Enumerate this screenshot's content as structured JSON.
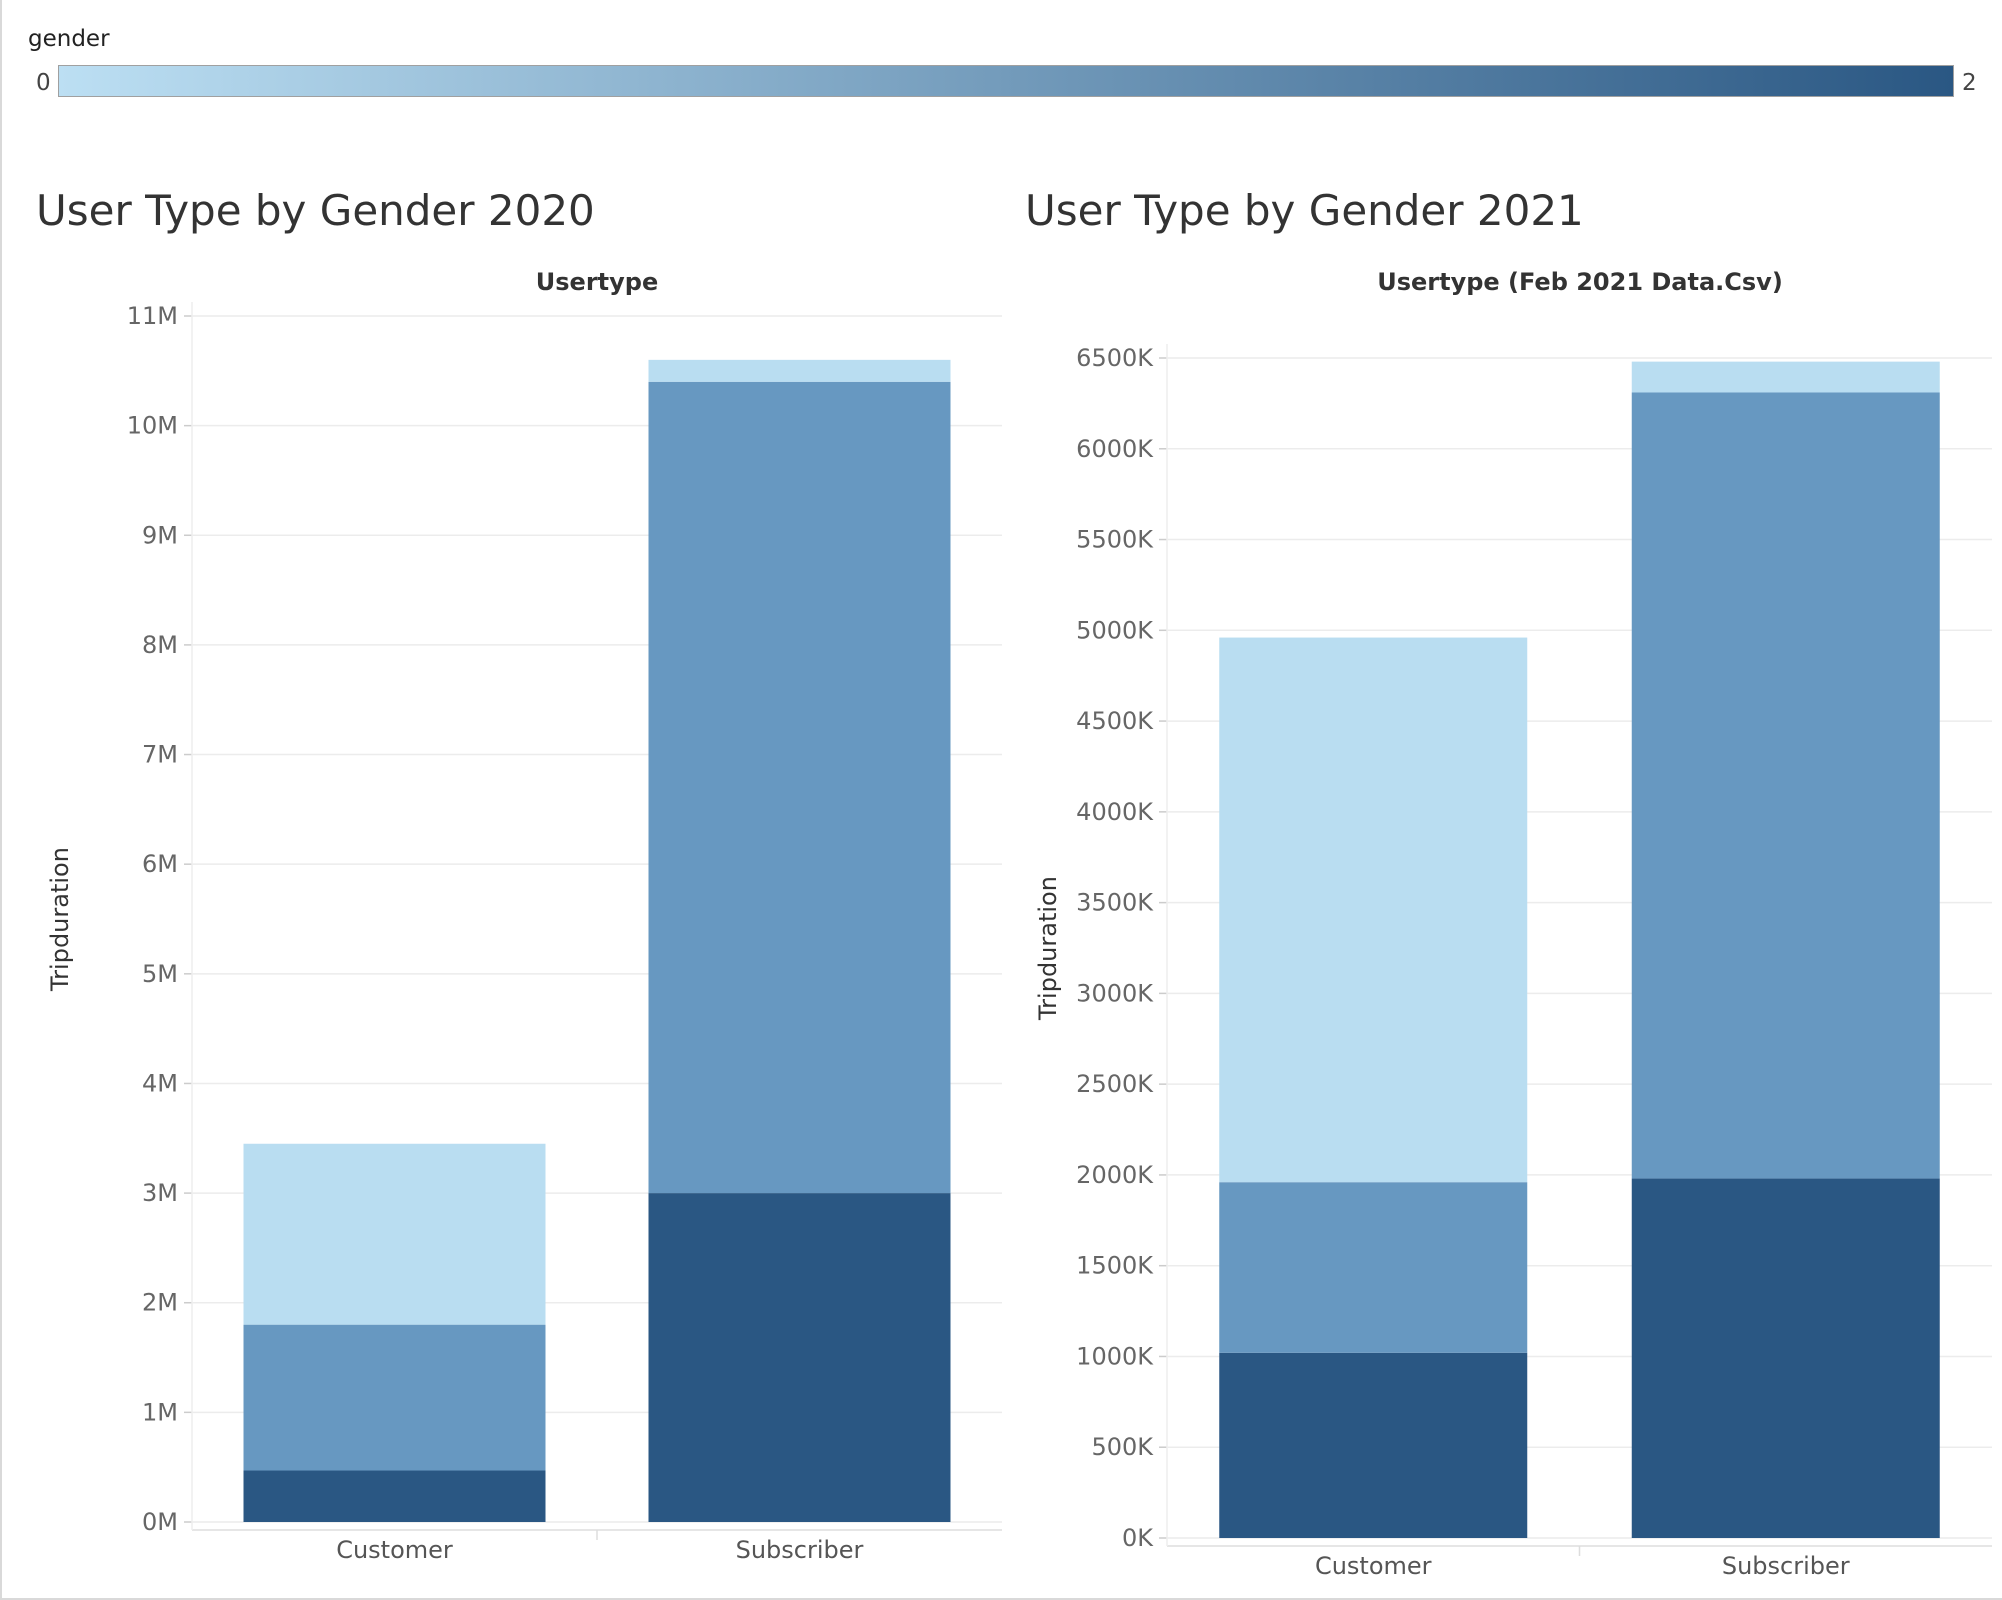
{
  "legend": {
    "title": "gender",
    "min_label": "0",
    "max_label": "2",
    "color_low": "#bcdff3",
    "color_high": "#2a5783"
  },
  "colors": {
    "gender_0": "#b9ddf1",
    "gender_1": "#6798c1",
    "gender_2": "#2a5783",
    "gridline": "#ececec"
  },
  "chart_data": [
    {
      "type": "bar",
      "stacked": true,
      "title": "User Type by Gender 2020",
      "header": "Usertype",
      "xlabel": "",
      "ylabel": "Tripduration",
      "categories": [
        "Customer",
        "Subscriber"
      ],
      "series": [
        {
          "name": "2",
          "values": [
            470000,
            3000000
          ]
        },
        {
          "name": "1",
          "values": [
            1330000,
            7400000
          ]
        },
        {
          "name": "0",
          "values": [
            1650000,
            200000
          ]
        }
      ],
      "ylim": [
        0,
        11000000
      ],
      "yticks": [
        0,
        1000000,
        2000000,
        3000000,
        4000000,
        5000000,
        6000000,
        7000000,
        8000000,
        9000000,
        10000000,
        11000000
      ],
      "ytick_labels": [
        "0M",
        "1M",
        "2M",
        "3M",
        "4M",
        "5M",
        "6M",
        "7M",
        "8M",
        "9M",
        "10M",
        "11M"
      ],
      "grid": true
    },
    {
      "type": "bar",
      "stacked": true,
      "title": "User Type by Gender 2021",
      "header": "Usertype (Feb 2021 Data.Csv)",
      "xlabel": "",
      "ylabel": "Tripduration",
      "categories": [
        "Customer",
        "Subscriber"
      ],
      "series": [
        {
          "name": "2",
          "values": [
            1020000,
            1980000
          ]
        },
        {
          "name": "1",
          "values": [
            940000,
            4330000
          ]
        },
        {
          "name": "0",
          "values": [
            3000000,
            170000
          ]
        }
      ],
      "ylim": [
        0,
        6500000
      ],
      "yticks": [
        0,
        500000,
        1000000,
        1500000,
        2000000,
        2500000,
        3000000,
        3500000,
        4000000,
        4500000,
        5000000,
        5500000,
        6000000,
        6500000
      ],
      "ytick_labels": [
        "0K",
        "500K",
        "1000K",
        "1500K",
        "2000K",
        "2500K",
        "3000K",
        "3500K",
        "4000K",
        "4500K",
        "5000K",
        "5500K",
        "6000K",
        "6500K"
      ],
      "grid": true
    }
  ]
}
